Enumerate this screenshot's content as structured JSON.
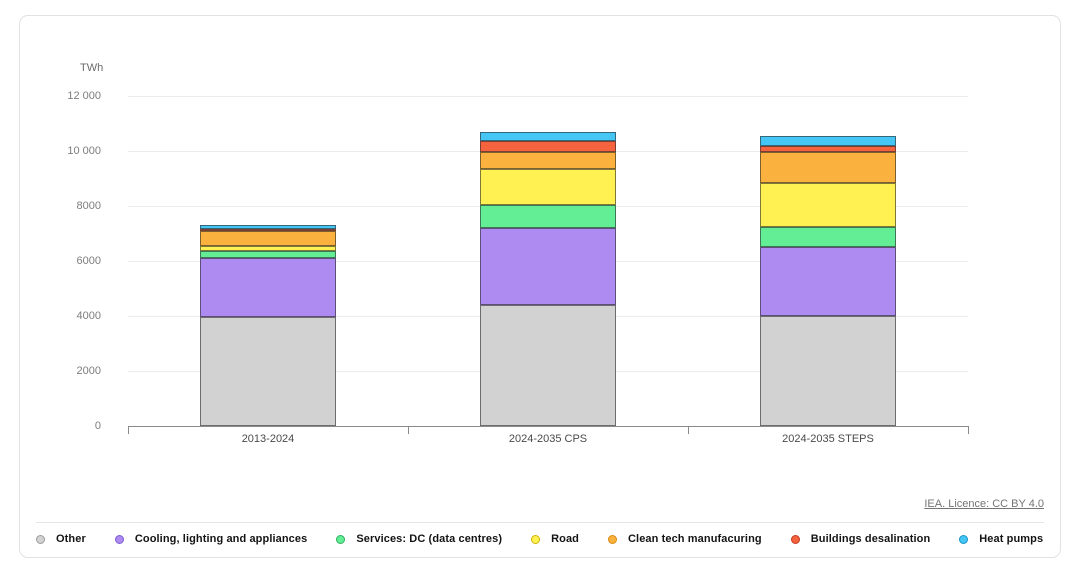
{
  "unit_label": "TWh",
  "license_text": "IEA. Licence: CC BY 4.0",
  "chart_data": {
    "type": "bar",
    "stacked": true,
    "title": "",
    "xlabel": "",
    "ylabel": "TWh",
    "ylim": [
      0,
      12000
    ],
    "yticks": [
      0,
      2000,
      4000,
      6000,
      8000,
      10000,
      12000
    ],
    "ytick_labels": [
      "0",
      "2000",
      "4000",
      "6000",
      "8000",
      "10 000",
      "12 000"
    ],
    "grid": true,
    "legend_position": "bottom",
    "categories": [
      "2013-2024",
      "2024-2035 CPS",
      "2024-2035 STEPS"
    ],
    "series": [
      {
        "name": "Other",
        "color": "#d2d2d2",
        "border": "#9b9b9b",
        "values": [
          3950,
          4400,
          4000
        ]
      },
      {
        "name": "Cooling, lighting and appliances",
        "color": "#ae8bf0",
        "border": "#7c5cd6",
        "values": [
          2150,
          2800,
          2510
        ]
      },
      {
        "name": "Services: DC (data centres)",
        "color": "#63ee96",
        "border": "#2fae60",
        "values": [
          260,
          840,
          730
        ]
      },
      {
        "name": "Road",
        "color": "#fef151",
        "border": "#d0b400",
        "values": [
          180,
          1310,
          1610
        ]
      },
      {
        "name": "Clean tech manufacuring",
        "color": "#fbb13d",
        "border": "#d68a10",
        "values": [
          560,
          600,
          1115
        ]
      },
      {
        "name": "Buildings desalination",
        "color": "#f4623e",
        "border": "#c23a1c",
        "values": [
          70,
          420,
          220
        ]
      },
      {
        "name": "Heat pumps",
        "color": "#45c6f4",
        "border": "#1893c9",
        "values": [
          130,
          330,
          365
        ]
      }
    ]
  }
}
